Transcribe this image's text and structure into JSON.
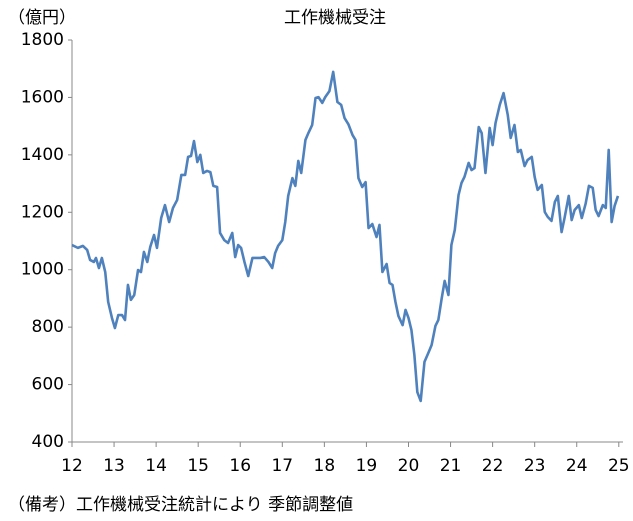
{
  "chart_data": {
    "type": "line",
    "title": "工作機械受注",
    "y_label": "（億円）",
    "note": "（備考）工作機械受注統計により 季節調整値",
    "xlim": [
      12,
      25.1
    ],
    "xticks": [
      12,
      13,
      14,
      15,
      16,
      17,
      18,
      19,
      20,
      21,
      22,
      23,
      24,
      25
    ],
    "ylim": [
      400,
      1800
    ],
    "yticks": [
      400,
      600,
      800,
      1000,
      1200,
      1400,
      1600,
      1800
    ],
    "grid": false,
    "series": [
      {
        "color": "#4f81bd",
        "x": [
          12.0,
          12.14,
          12.26,
          12.36,
          12.43,
          12.52,
          12.57,
          12.64,
          12.71,
          12.79,
          12.86,
          12.95,
          13.02,
          13.1,
          13.19,
          13.26,
          13.33,
          13.4,
          13.48,
          13.57,
          13.64,
          13.71,
          13.79,
          13.86,
          13.95,
          14.02,
          14.12,
          14.21,
          14.31,
          14.4,
          14.5,
          14.6,
          14.69,
          14.76,
          14.83,
          14.9,
          14.98,
          15.05,
          15.12,
          15.21,
          15.29,
          15.36,
          15.45,
          15.52,
          15.62,
          15.71,
          15.81,
          15.88,
          15.95,
          16.02,
          16.1,
          16.19,
          16.29,
          16.38,
          16.48,
          16.57,
          16.67,
          16.76,
          16.83,
          16.9,
          17.0,
          17.07,
          17.14,
          17.24,
          17.31,
          17.38,
          17.45,
          17.55,
          17.62,
          17.71,
          17.79,
          17.86,
          17.95,
          18.02,
          18.12,
          18.21,
          18.31,
          18.4,
          18.48,
          18.57,
          18.67,
          18.74,
          18.81,
          18.9,
          18.98,
          19.05,
          19.14,
          19.24,
          19.31,
          19.38,
          19.48,
          19.55,
          19.62,
          19.69,
          19.76,
          19.86,
          19.93,
          20.0,
          20.07,
          20.14,
          20.21,
          20.29,
          20.38,
          20.48,
          20.55,
          20.64,
          20.71,
          20.79,
          20.86,
          20.95,
          21.02,
          21.1,
          21.19,
          21.26,
          21.33,
          21.43,
          21.5,
          21.57,
          21.67,
          21.74,
          21.83,
          21.93,
          22.0,
          22.07,
          22.17,
          22.26,
          22.36,
          22.43,
          22.52,
          22.6,
          22.67,
          22.76,
          22.83,
          22.93,
          23.0,
          23.07,
          23.17,
          23.24,
          23.31,
          23.4,
          23.48,
          23.55,
          23.64,
          23.71,
          23.81,
          23.88,
          23.95,
          24.05,
          24.12,
          24.21,
          24.29,
          24.38,
          24.45,
          24.52,
          24.62,
          24.69,
          24.76,
          24.83,
          24.9,
          24.98
        ],
        "values": [
          1086,
          1076,
          1083,
          1069,
          1034,
          1027,
          1041,
          1006,
          1041,
          992,
          888,
          832,
          797,
          842,
          842,
          825,
          947,
          895,
          912,
          999,
          992,
          1062,
          1027,
          1079,
          1121,
          1076,
          1180,
          1225,
          1166,
          1215,
          1243,
          1330,
          1330,
          1393,
          1396,
          1448,
          1375,
          1400,
          1337,
          1344,
          1340,
          1292,
          1288,
          1128,
          1103,
          1093,
          1128,
          1044,
          1086,
          1076,
          1027,
          978,
          1041,
          1041,
          1041,
          1044,
          1027,
          1006,
          1058,
          1083,
          1103,
          1166,
          1257,
          1319,
          1292,
          1379,
          1337,
          1452,
          1476,
          1504,
          1598,
          1601,
          1581,
          1601,
          1622,
          1689,
          1584,
          1574,
          1528,
          1507,
          1469,
          1452,
          1319,
          1288,
          1305,
          1145,
          1159,
          1114,
          1156,
          992,
          1020,
          954,
          947,
          888,
          839,
          807,
          860,
          832,
          790,
          703,
          574,
          543,
          679,
          713,
          738,
          804,
          825,
          901,
          961,
          912,
          1086,
          1138,
          1260,
          1302,
          1323,
          1372,
          1347,
          1354,
          1497,
          1476,
          1337,
          1494,
          1434,
          1511,
          1574,
          1615,
          1539,
          1459,
          1504,
          1410,
          1417,
          1361,
          1382,
          1393,
          1323,
          1278,
          1295,
          1201,
          1184,
          1170,
          1236,
          1257,
          1131,
          1180,
          1257,
          1173,
          1208,
          1225,
          1180,
          1229,
          1292,
          1285,
          1208,
          1187,
          1225,
          1215,
          1417,
          1166,
          1222,
          1257
        ]
      }
    ]
  }
}
